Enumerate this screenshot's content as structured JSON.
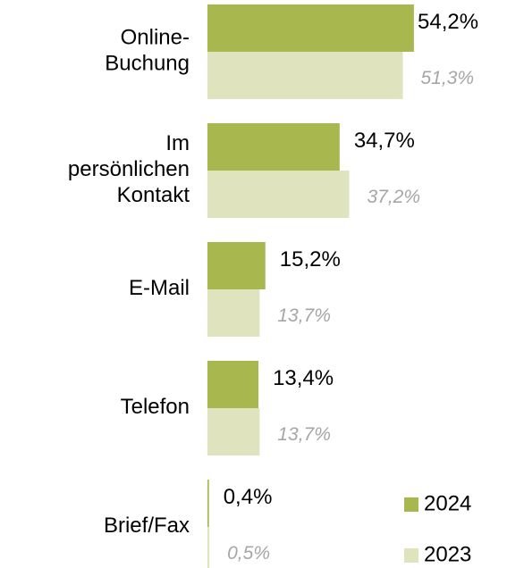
{
  "chart_data": {
    "type": "bar",
    "orientation": "horizontal",
    "categories": [
      "Online-\nBuchung",
      "Im\npersönlichen\nKontakt",
      "E-Mail",
      "Telefon",
      "Brief/Fax"
    ],
    "series": [
      {
        "name": "2024",
        "color": "#a8b74e",
        "values": [
          54.2,
          34.7,
          15.2,
          13.4,
          0.4
        ],
        "value_labels": [
          "54,2%",
          "34,7%",
          "15,2%",
          "13,4%",
          "0,4%"
        ]
      },
      {
        "name": "2023",
        "color": "#dfe4bf",
        "values": [
          51.3,
          37.2,
          13.7,
          13.7,
          0.5
        ],
        "value_labels": [
          "51,3%",
          "37,2%",
          "13,7%",
          "13,7%",
          "0,5%"
        ]
      }
    ],
    "legend": "bottom-right"
  }
}
